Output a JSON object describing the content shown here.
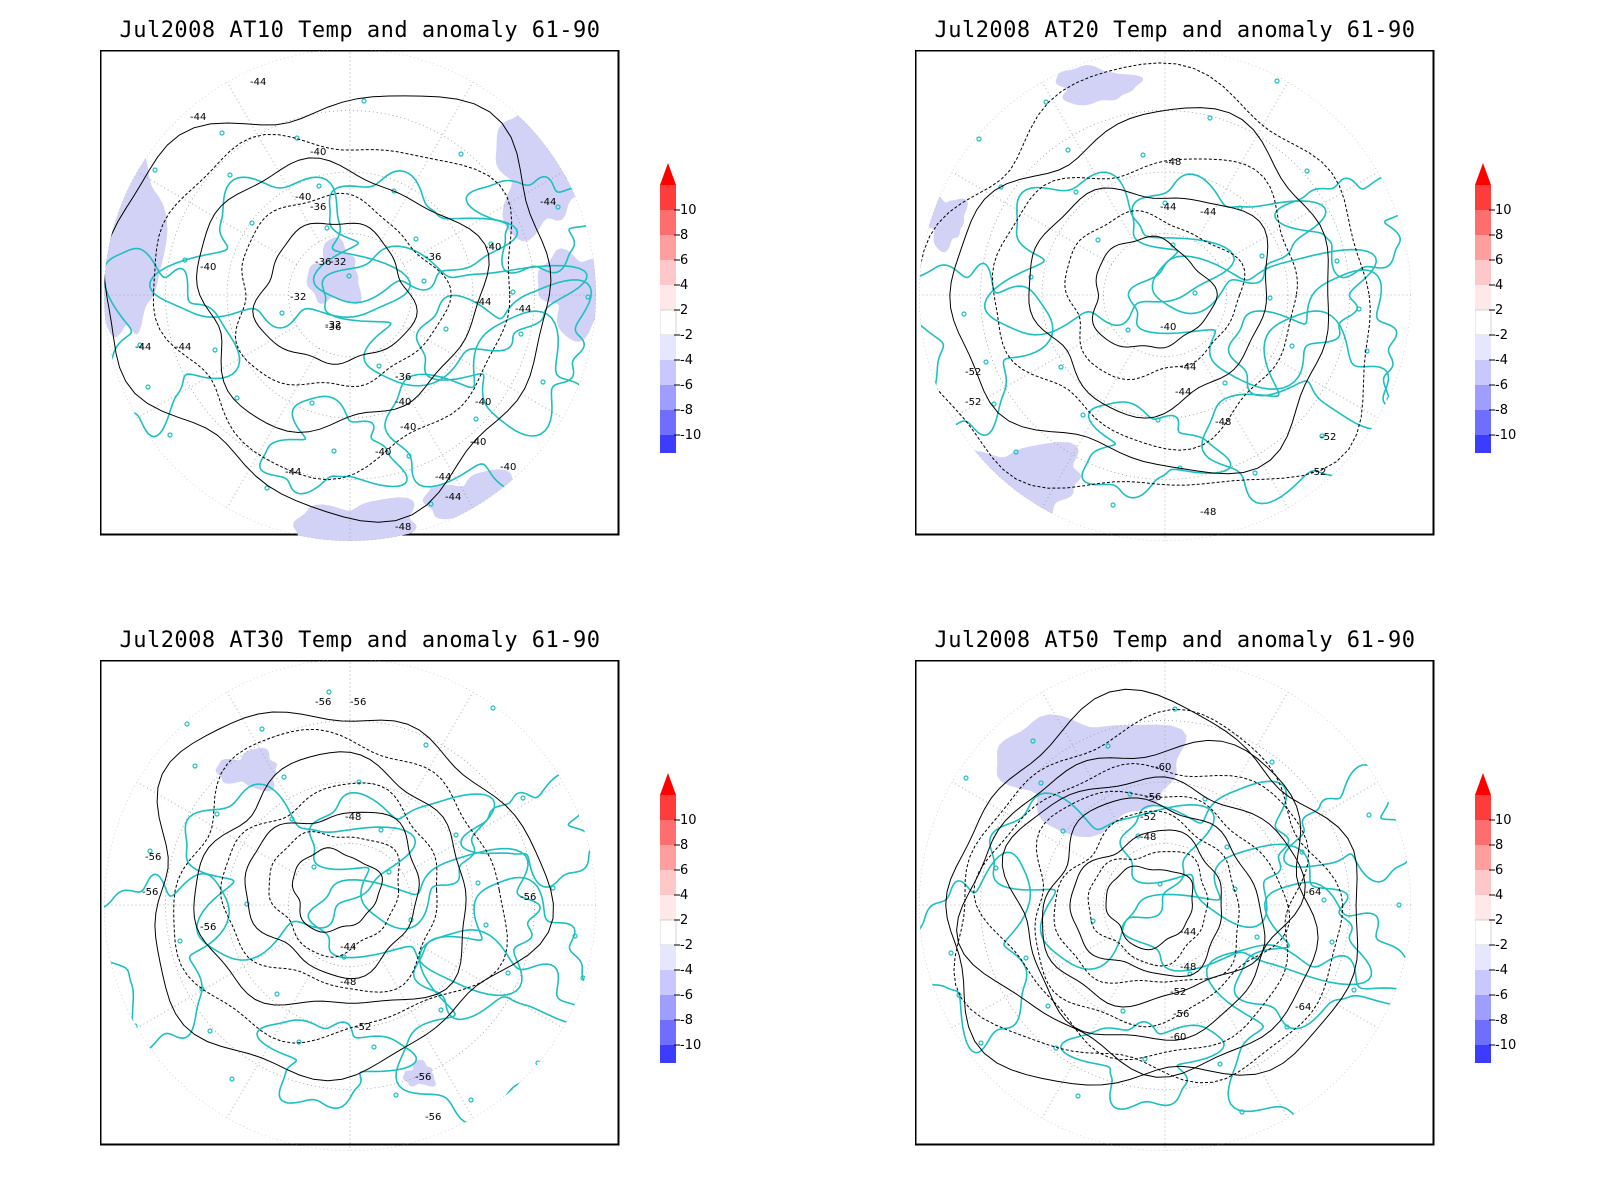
{
  "panels": [
    {
      "title": "Jul2008 AT10 Temp and anomaly 61-90",
      "contour_labels": [
        "-44",
        "-44",
        "-44",
        "-40",
        "-40",
        "-36",
        "-36",
        "-32",
        "-32",
        "-32",
        "-36",
        "-36",
        "-40",
        "-44",
        "-44",
        "-40",
        "-44",
        "-44",
        "-44",
        "-44",
        "-36",
        "-40",
        "-40",
        "-40",
        "-40",
        "-44",
        "-44",
        "-48",
        "-40",
        "-40",
        "-44"
      ]
    },
    {
      "title": "Jul2008 AT20 Temp and anomaly 61-90",
      "contour_labels": [
        "-48",
        "-44",
        "-44",
        "-40",
        "-44",
        "-44",
        "-48",
        "-52",
        "-52",
        "-52",
        "-52",
        "-48"
      ]
    },
    {
      "title": "Jul2008 AT30 Temp and anomaly 61-90",
      "contour_labels": [
        "-56",
        "-56",
        "-48",
        "-56",
        "-56",
        "-56",
        "-56",
        "-44",
        "-48",
        "-52",
        "-56",
        "-56",
        "-56"
      ]
    },
    {
      "title": "Jul2008 AT50 Temp and anomaly 61-90",
      "contour_labels": [
        "-60",
        "-56",
        "-52",
        "-48",
        "-44",
        "-48",
        "-52",
        "-56",
        "-60",
        "-64",
        "-64"
      ]
    }
  ],
  "colorbar": {
    "levels": [
      "10",
      "8",
      "6",
      "4",
      "2",
      "-2",
      "-4",
      "-6",
      "-8",
      "-10"
    ],
    "colors": [
      "#ff3c3c",
      "#ff6e6e",
      "#ff9e9e",
      "#ffc8c8",
      "#ffe8e8",
      "#ffffff",
      "#e6e6ff",
      "#c8c8ff",
      "#9e9eff",
      "#6e6eff",
      "#3c3cff"
    ],
    "over_color": "#ff0000",
    "under_color": "#0000ff"
  },
  "colors": {
    "coastline": "#1fbfbf",
    "anomaly_fill": "#d2d2f7",
    "contour": "#000000",
    "grid": "#999999"
  }
}
